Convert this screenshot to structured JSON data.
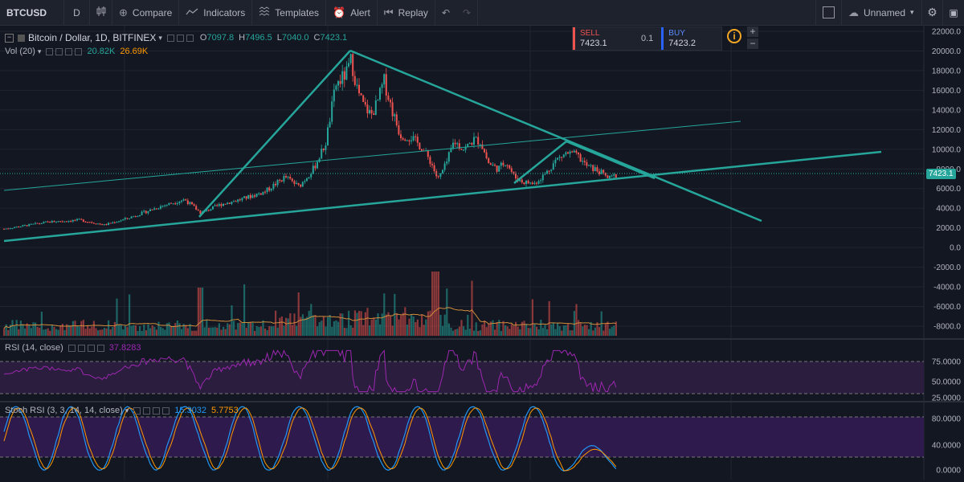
{
  "toolbar": {
    "symbol": "BTCUSD",
    "interval": "D",
    "compare": "Compare",
    "indicators": "Indicators",
    "templates": "Templates",
    "alert": "Alert",
    "replay": "Replay",
    "layout_name": "Unnamed"
  },
  "legend": {
    "title": "Bitcoin / Dollar, 1D, BITFINEX",
    "open_label": "O",
    "open": "7097.8",
    "high_label": "H",
    "high": "7496.5",
    "low_label": "L",
    "low": "7040.0",
    "close_label": "C",
    "close": "7423.1",
    "vol_label": "Vol (20)",
    "vol_val1": "20.82K",
    "vol_val2": "26.69K",
    "rsi_label": "RSI (14, close)",
    "rsi_val": "37.8283",
    "stoch_label": "Stoch RSI (3, 3, 14, 14, close)",
    "stoch_k": "15.3032",
    "stoch_d": "5.7753"
  },
  "trade": {
    "sell_label": "SELL",
    "sell_price": "7423.1",
    "qty": "0.1",
    "buy_label": "BUY",
    "buy_price": "7423.2",
    "info": "i",
    "plus": "+",
    "minus": "−"
  },
  "price_axis": [
    "22000.0",
    "20000.0",
    "18000.0",
    "16000.0",
    "14000.0",
    "12000.0",
    "10000.0",
    "8000.0",
    "6000.0",
    "4000.0",
    "2000.0",
    "0.0",
    "-2000.0",
    "-4000.0",
    "-6000.0",
    "-8000.0"
  ],
  "current_price_tag": "7423.1",
  "rsi_axis": [
    "75.0000",
    "50.0000",
    "25.0000"
  ],
  "stoch_axis": [
    "80.0000",
    "40.0000",
    "0.0000"
  ],
  "colors": {
    "background": "#131722",
    "up": "#26a69a",
    "down": "#ef5350",
    "trendline": "#26a69a",
    "rsi": "#9c27b0",
    "rsi_band": "#3b1f4f",
    "stoch_k": "#2196f3",
    "stoch_d": "#ff9800"
  }
}
